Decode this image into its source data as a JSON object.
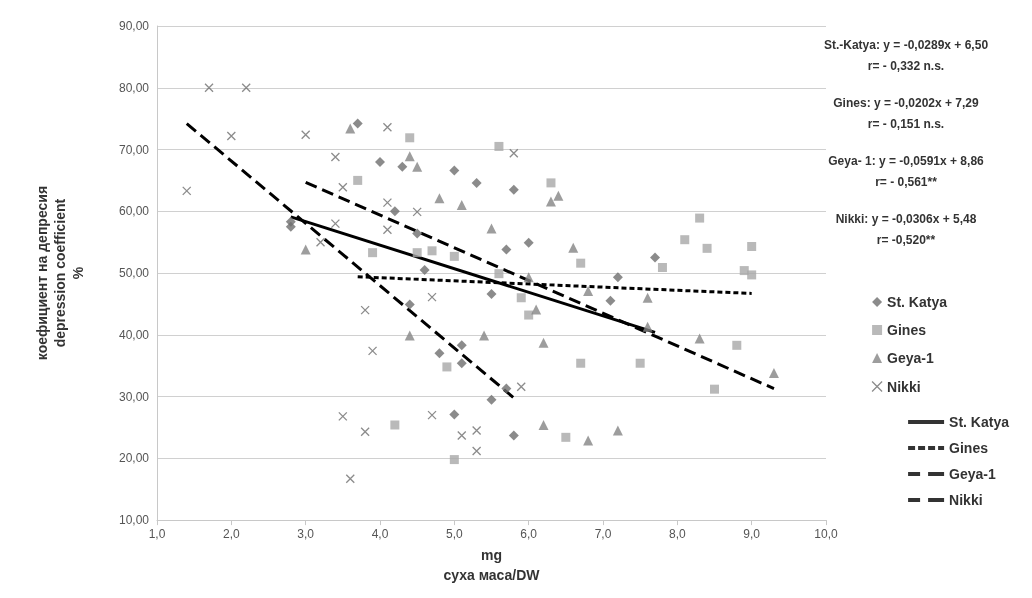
{
  "chart_data": {
    "type": "scatter",
    "xlabel": "mg\nсуха маса/DW",
    "ylabel": "коефициент на депресия\ndepression coefficient\n%",
    "xlim": [
      1,
      10
    ],
    "xticks": [
      {
        "value": 1,
        "label": "1,0"
      },
      {
        "value": 2,
        "label": "2,0"
      },
      {
        "value": 3,
        "label": "3,0"
      },
      {
        "value": 4,
        "label": "4,0"
      },
      {
        "value": 5,
        "label": "5,0"
      },
      {
        "value": 6,
        "label": "6,0"
      },
      {
        "value": 7,
        "label": "7,0"
      },
      {
        "value": 8,
        "label": "8,0"
      },
      {
        "value": 9,
        "label": "9,0"
      },
      {
        "value": 10,
        "label": "10,0"
      }
    ],
    "ylim": [
      10,
      90
    ],
    "yticks": [
      {
        "value": 10,
        "label": "10,00"
      },
      {
        "value": 20,
        "label": "20,00"
      },
      {
        "value": 30,
        "label": "30,00"
      },
      {
        "value": 40,
        "label": "40,00"
      },
      {
        "value": 50,
        "label": "50,00"
      },
      {
        "value": 60,
        "label": "60,00"
      },
      {
        "value": 70,
        "label": "70,00"
      },
      {
        "value": 80,
        "label": "80,00"
      },
      {
        "value": 90,
        "label": "90,00"
      }
    ],
    "grid": "y",
    "legend": "right",
    "annotations": [
      "St.-Katya: y = -0,0289x + 6,50\nr= - 0,332 n.s.",
      "Gines: y = -0,0202x + 7,29\nr= - 0,151 n.s.",
      "Geya- 1: y = -0,0591x + 8,86\nr= - 0,561**",
      "Nikki: y = -0,0306x + 5,48\nr= -0,520**"
    ],
    "series": [
      {
        "name": "St. Katya",
        "marker": "diamond",
        "color": "#6e6e6e",
        "x": [
          2.8,
          2.8,
          3.7,
          4.0,
          4.3,
          5.0,
          5.3,
          5.8,
          4.2,
          4.5,
          5.7,
          6.0,
          7.7,
          4.6,
          7.2,
          5.5,
          7.1,
          4.4,
          5.1,
          4.8,
          5.1,
          5.7,
          5.5,
          5.0,
          5.8
        ],
        "values": [
          57.5,
          58.3,
          74.2,
          68,
          67.2,
          66.6,
          64.6,
          63.5,
          60,
          56.4,
          53.8,
          54.9,
          52.5,
          50.5,
          49.3,
          46.6,
          45.5,
          44.9,
          38.3,
          37,
          35.4,
          31.3,
          29.5,
          27.1,
          23.7
        ]
      },
      {
        "name": "Gines",
        "marker": "square",
        "color": "#a8a8a8",
        "x": [
          3.7,
          4.4,
          5.6,
          6.3,
          3.9,
          4.5,
          4.7,
          5.0,
          6.7,
          7.8,
          8.3,
          8.1,
          8.4,
          9.0,
          8.9,
          9.0,
          5.6,
          5.9,
          6.0,
          8.8,
          4.9,
          6.7,
          7.5,
          8.5,
          4.2,
          6.5,
          5.0
        ],
        "values": [
          65,
          71.9,
          70.5,
          64.6,
          53.3,
          53.3,
          53.6,
          52.7,
          51.6,
          50.9,
          58.9,
          55.4,
          54,
          54.3,
          50.4,
          49.7,
          49.9,
          46,
          43.2,
          38.3,
          34.8,
          35.4,
          35.4,
          31.2,
          25.4,
          23.4,
          19.8
        ]
      },
      {
        "name": "Geya-1",
        "marker": "triangle",
        "color": "#858585",
        "x": [
          3.6,
          4.4,
          4.5,
          4.8,
          5.1,
          6.3,
          6.4,
          3.0,
          5.5,
          6.6,
          6.0,
          6.8,
          7.6,
          6.1,
          7.6,
          4.4,
          5.4,
          6.2,
          8.3,
          9.3,
          6.2,
          6.8,
          7.2
        ],
        "values": [
          73.4,
          68.9,
          67.2,
          62.1,
          61,
          61.6,
          62.5,
          53.8,
          57.2,
          54.1,
          49.3,
          47.1,
          46,
          44.1,
          41.3,
          39.9,
          39.9,
          38.7,
          39.4,
          33.8,
          25.4,
          22.9,
          24.5
        ]
      },
      {
        "name": "Nikki",
        "marker": "cross",
        "color": "#6e6e6e",
        "x": [
          1.4,
          1.7,
          2.0,
          2.2,
          3.0,
          3.4,
          3.5,
          3.4,
          3.2,
          4.1,
          4.1,
          4.1,
          4.5,
          5.8,
          3.8,
          3.9,
          4.7,
          5.9,
          3.5,
          4.7,
          3.8,
          5.1,
          5.3,
          5.3,
          3.6
        ],
        "values": [
          63.3,
          80,
          72.2,
          80,
          72.4,
          68.8,
          63.9,
          58,
          55,
          73.6,
          61.4,
          57,
          59.9,
          69.4,
          44,
          37.4,
          46.1,
          31.6,
          26.8,
          27,
          24.3,
          23.7,
          24.5,
          21.2,
          16.7
        ]
      },
      {
        "name": "St. Katya",
        "type": "line",
        "line_style": "solid",
        "color": "#000000",
        "x": [
          2.8,
          7.7
        ],
        "values": [
          59.1,
          40.4
        ]
      },
      {
        "name": "Gines",
        "type": "line",
        "line_style": "dotted",
        "color": "#000000",
        "x": [
          3.7,
          9.0
        ],
        "values": [
          49.4,
          46.7
        ]
      },
      {
        "name": "Geya-1",
        "type": "line",
        "line_style": "dashed",
        "color": "#000000",
        "x": [
          3.0,
          9.3
        ],
        "values": [
          64.7,
          31.3
        ]
      },
      {
        "name": "Nikki",
        "type": "line",
        "line_style": "dashed",
        "color": "#000000",
        "x": [
          1.4,
          5.8
        ],
        "values": [
          74.2,
          29.8
        ]
      }
    ]
  }
}
